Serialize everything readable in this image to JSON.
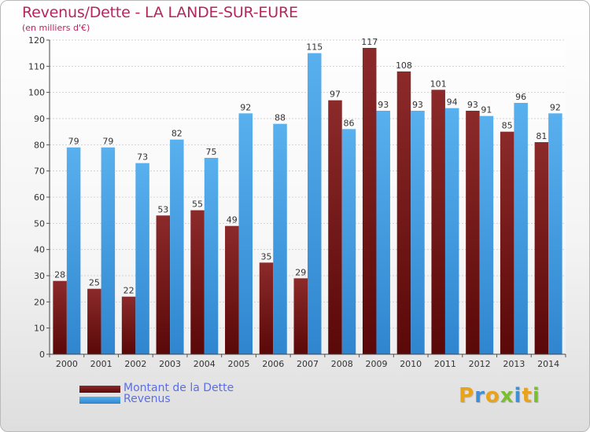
{
  "chart_data": {
    "type": "bar",
    "title": "Revenus/Dette - LA LANDE-SUR-EURE",
    "subtitle": "(en milliers d'€)",
    "categories": [
      "2000",
      "2001",
      "2002",
      "2003",
      "2004",
      "2005",
      "2006",
      "2007",
      "2008",
      "2009",
      "2010",
      "2011",
      "2012",
      "2013",
      "2014"
    ],
    "series": [
      {
        "name": "Montant de la Dette",
        "color": "#7b1212",
        "values": [
          28,
          25,
          22,
          53,
          55,
          49,
          35,
          29,
          97,
          117,
          108,
          101,
          93,
          85,
          81
        ]
      },
      {
        "name": "Revenus",
        "color": "#4aa3e6",
        "values": [
          79,
          79,
          73,
          82,
          75,
          92,
          88,
          115,
          86,
          93,
          93,
          94,
          91,
          96,
          92
        ]
      }
    ],
    "ylim": [
      0,
      120
    ],
    "yticks": [
      0,
      10,
      20,
      30,
      40,
      50,
      60,
      70,
      80,
      90,
      100,
      110,
      120
    ],
    "grid": true,
    "legend_placement": "bottom-left"
  },
  "logo": {
    "text": "Proxiti",
    "colors": [
      "#e8a21c",
      "#3f8fd8",
      "#e8a21c",
      "#7cbf2e",
      "#3f8fd8",
      "#e8a21c",
      "#7cbf2e"
    ]
  }
}
